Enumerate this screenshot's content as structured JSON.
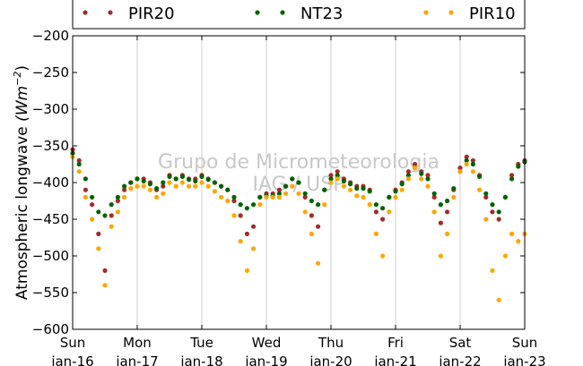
{
  "chart_data": {
    "type": "scatter",
    "title": "",
    "ylabel": "Atmospheric longwave",
    "ylabel_unit": "(Wm^-2)",
    "ylim": [
      -600,
      -200
    ],
    "yticks": [
      "−200",
      "−250",
      "−300",
      "−350",
      "−400",
      "−450",
      "−500",
      "−550",
      "−600"
    ],
    "ytick_values": [
      -200,
      -250,
      -300,
      -350,
      -400,
      -450,
      -500,
      -550,
      -600
    ],
    "xlim": [
      0,
      7
    ],
    "xticks": [
      {
        "day": "Sun",
        "date": "jan-16"
      },
      {
        "day": "Mon",
        "date": "jan-17"
      },
      {
        "day": "Tue",
        "date": "jan-18"
      },
      {
        "day": "Wed",
        "date": "jan-19"
      },
      {
        "day": "Thu",
        "date": "jan-20"
      },
      {
        "day": "Fri",
        "date": "jan-21"
      },
      {
        "day": "Sat",
        "date": "jan-22"
      },
      {
        "day": "Sun",
        "date": "jan-23"
      }
    ],
    "grid": "vertical",
    "legend_position": "top",
    "watermark": {
      "line1": "Grupo de Micrometeorologia",
      "line2": "IAG / USP"
    },
    "series": [
      {
        "name": "PIR20",
        "color": "#a52a2a",
        "x": [
          0.0,
          0.1,
          0.2,
          0.3,
          0.4,
          0.5,
          0.6,
          0.7,
          0.8,
          0.9,
          1.0,
          1.1,
          1.2,
          1.3,
          1.4,
          1.5,
          1.6,
          1.7,
          1.8,
          1.9,
          2.0,
          2.1,
          2.2,
          2.3,
          2.4,
          2.5,
          2.6,
          2.7,
          2.8,
          2.9,
          3.0,
          3.1,
          3.2,
          3.3,
          3.4,
          3.5,
          3.6,
          3.7,
          3.8,
          3.9,
          4.0,
          4.1,
          4.2,
          4.3,
          4.4,
          4.5,
          4.6,
          4.7,
          4.8,
          4.9,
          5.0,
          5.1,
          5.2,
          5.3,
          5.4,
          5.5,
          5.6,
          5.7,
          5.8,
          5.9,
          6.0,
          6.1,
          6.2,
          6.3,
          6.4,
          6.5,
          6.6,
          6.7,
          6.8,
          6.9,
          7.0
        ],
        "y": [
          -355,
          -370,
          -410,
          -430,
          -470,
          -520,
          -445,
          -425,
          -410,
          -400,
          -395,
          -395,
          -400,
          -410,
          -405,
          -390,
          -395,
          -390,
          -395,
          -395,
          -390,
          -395,
          -400,
          -405,
          -410,
          -425,
          -445,
          -470,
          -460,
          -420,
          -415,
          -415,
          -410,
          -405,
          -395,
          -400,
          -420,
          -445,
          -460,
          -410,
          -390,
          -385,
          -395,
          -400,
          -405,
          -405,
          -410,
          -440,
          -450,
          -420,
          -410,
          -400,
          -385,
          -375,
          -385,
          -390,
          -420,
          -455,
          -440,
          -410,
          -380,
          -365,
          -370,
          -390,
          -420,
          -440,
          -450,
          -420,
          -390,
          -375,
          -370
        ]
      },
      {
        "name": "NT23",
        "color": "#006400",
        "x": [
          0.0,
          0.1,
          0.2,
          0.3,
          0.4,
          0.5,
          0.6,
          0.7,
          0.8,
          0.9,
          1.0,
          1.1,
          1.2,
          1.3,
          1.4,
          1.5,
          1.6,
          1.7,
          1.8,
          1.9,
          2.0,
          2.1,
          2.2,
          2.3,
          2.4,
          2.5,
          2.6,
          2.7,
          2.8,
          2.9,
          3.0,
          3.1,
          3.2,
          3.3,
          3.4,
          3.5,
          3.6,
          3.7,
          3.8,
          3.9,
          4.0,
          4.1,
          4.2,
          4.3,
          4.4,
          4.5,
          4.6,
          4.7,
          4.8,
          4.9,
          5.0,
          5.1,
          5.2,
          5.3,
          5.4,
          5.5,
          5.6,
          5.7,
          5.8,
          5.9,
          6.0,
          6.1,
          6.2,
          6.3,
          6.4,
          6.5,
          6.6,
          6.7,
          6.8,
          6.9,
          7.0
        ],
        "y": [
          -360,
          -375,
          -395,
          -420,
          -440,
          -445,
          -430,
          -420,
          -405,
          -400,
          -395,
          -398,
          -402,
          -408,
          -400,
          -392,
          -395,
          -392,
          -396,
          -398,
          -392,
          -396,
          -400,
          -405,
          -410,
          -420,
          -430,
          -435,
          -430,
          -420,
          -418,
          -418,
          -415,
          -405,
          -395,
          -400,
          -415,
          -425,
          -430,
          -410,
          -395,
          -390,
          -398,
          -402,
          -408,
          -408,
          -412,
          -430,
          -435,
          -420,
          -412,
          -402,
          -390,
          -380,
          -388,
          -395,
          -415,
          -430,
          -425,
          -408,
          -385,
          -370,
          -375,
          -392,
          -415,
          -430,
          -440,
          -420,
          -395,
          -378,
          -372
        ]
      },
      {
        "name": "PIR10",
        "color": "#ffa500",
        "x": [
          0.0,
          0.1,
          0.2,
          0.3,
          0.4,
          0.5,
          0.6,
          0.7,
          0.8,
          0.9,
          1.0,
          1.1,
          1.2,
          1.3,
          1.4,
          1.5,
          1.6,
          1.7,
          1.8,
          1.9,
          2.0,
          2.1,
          2.2,
          2.3,
          2.4,
          2.5,
          2.6,
          2.7,
          2.8,
          2.9,
          3.0,
          3.1,
          3.2,
          3.3,
          3.4,
          3.5,
          3.6,
          3.7,
          3.8,
          3.9,
          4.0,
          4.1,
          4.2,
          4.3,
          4.4,
          4.5,
          4.6,
          4.7,
          4.8,
          4.9,
          5.0,
          5.1,
          5.2,
          5.3,
          5.4,
          5.5,
          5.6,
          5.7,
          5.8,
          5.9,
          6.0,
          6.1,
          6.2,
          6.3,
          6.4,
          6.5,
          6.6,
          6.7,
          6.8,
          6.9,
          7.0
        ],
        "y": [
          -365,
          -385,
          -420,
          -450,
          -490,
          -540,
          -460,
          -440,
          -420,
          -408,
          -405,
          -405,
          -410,
          -420,
          -415,
          -400,
          -405,
          -400,
          -405,
          -405,
          -400,
          -405,
          -412,
          -420,
          -425,
          -445,
          -480,
          -520,
          -490,
          -430,
          -420,
          -420,
          -420,
          -415,
          -405,
          -415,
          -440,
          -470,
          -510,
          -430,
          -400,
          -395,
          -405,
          -410,
          -418,
          -420,
          -430,
          -470,
          -500,
          -440,
          -420,
          -410,
          -395,
          -380,
          -395,
          -405,
          -440,
          -500,
          -470,
          -420,
          -385,
          -375,
          -385,
          -410,
          -450,
          -520,
          -560,
          -500,
          -470,
          -480,
          -470
        ]
      }
    ]
  }
}
